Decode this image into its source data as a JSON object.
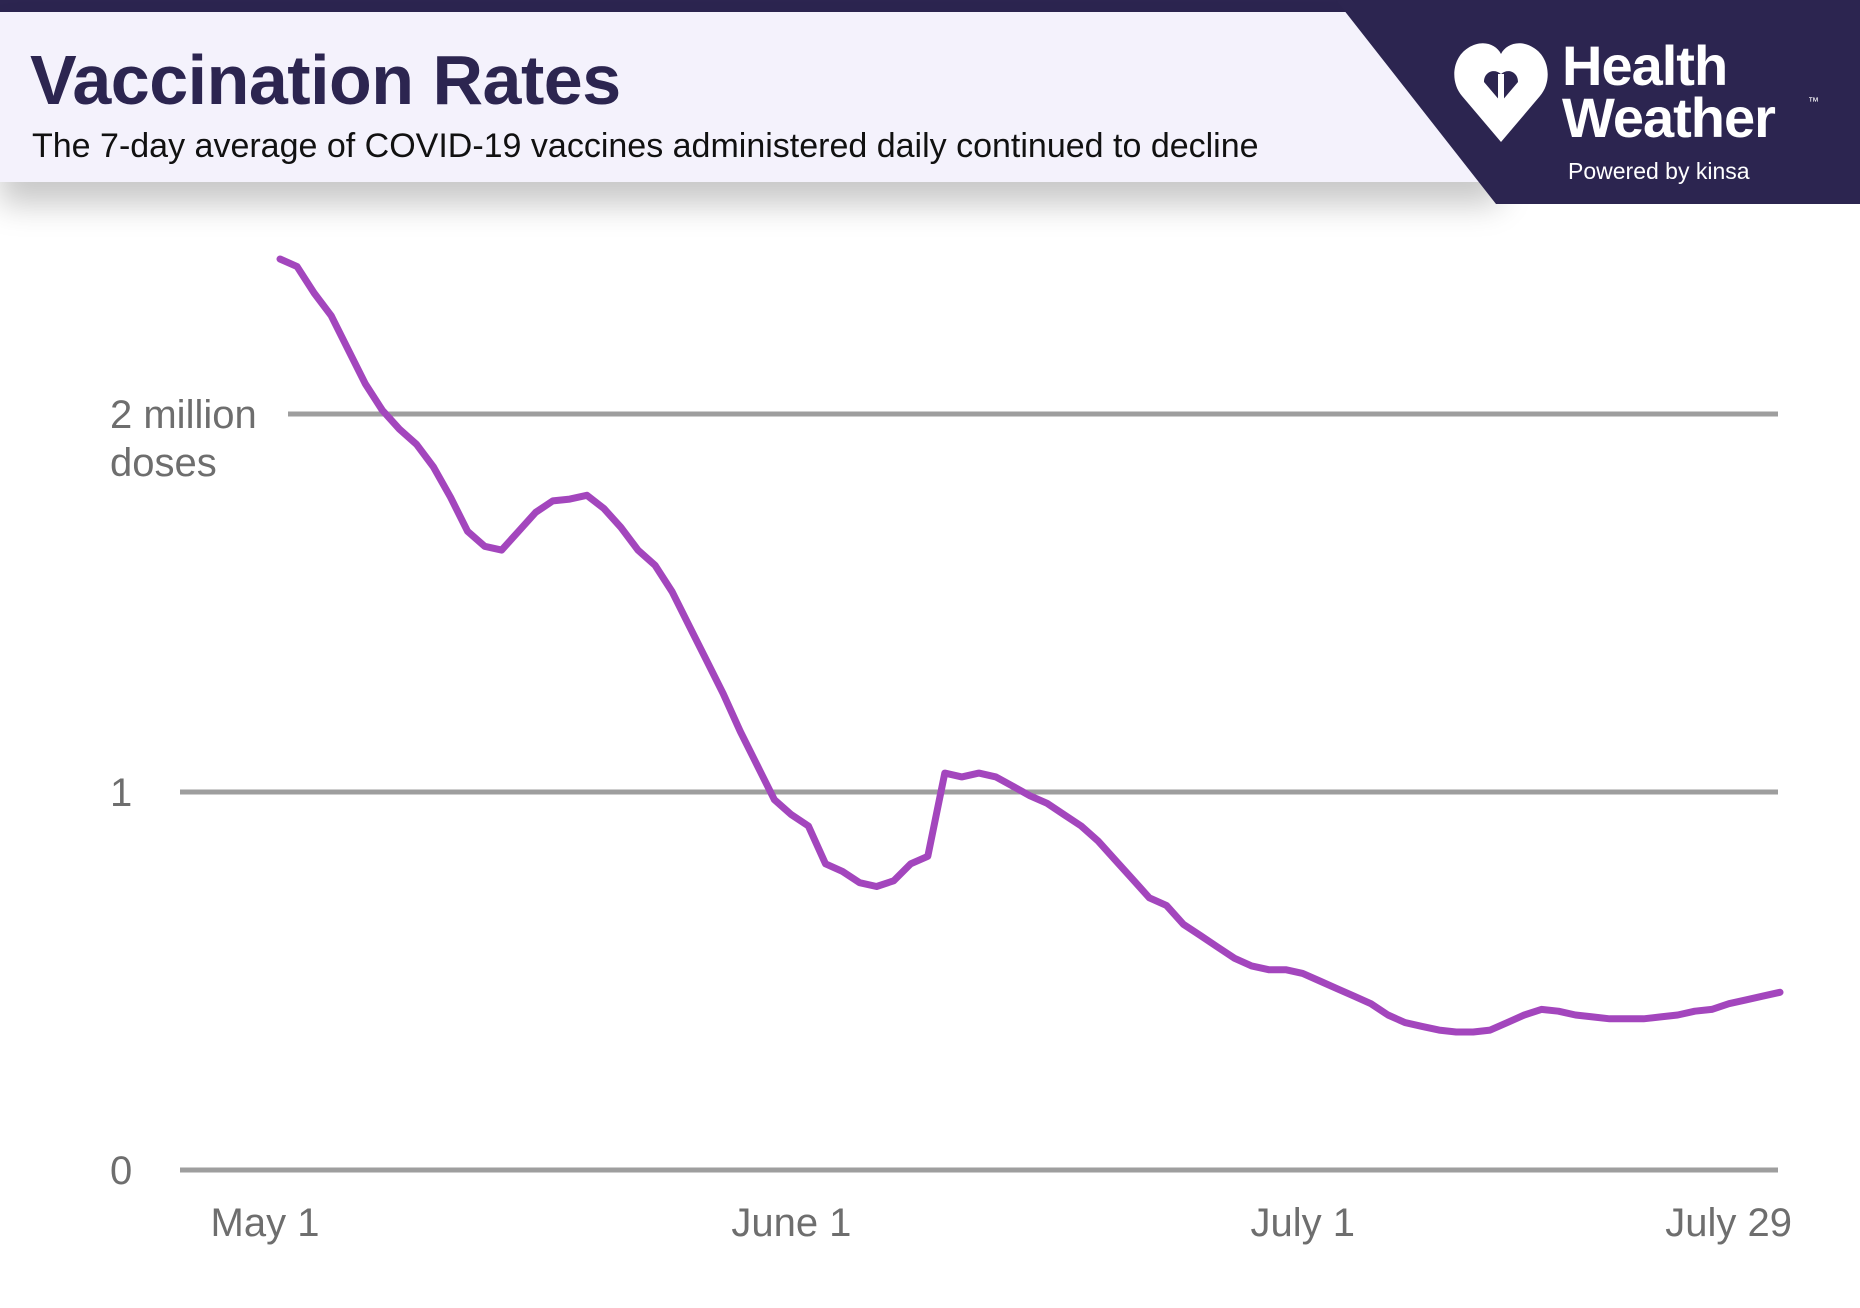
{
  "header": {
    "title": "Vaccination Rates",
    "subtitle": "The 7-day average of COVID-19 vaccines administered daily continued to decline"
  },
  "brand": {
    "name_line1": "Health",
    "name_line2": "Weather",
    "trademark": "™",
    "powered_by": "Powered by kinsa",
    "icon": "heart-icon"
  },
  "colors": {
    "brand_dark": "#2c2550",
    "line": "#a346bd",
    "grid": "#9e9e9e",
    "tick_text": "#6e6e6e"
  },
  "chart_data": {
    "type": "line",
    "title": "Vaccination Rates",
    "subtitle": "The 7-day average of COVID-19 vaccines administered daily continued to decline",
    "xlabel": "",
    "ylabel": "doses (millions)",
    "unit_label": "doses",
    "ylim": [
      0,
      2.5
    ],
    "xlim": [
      0,
      89
    ],
    "x_ticks": [
      {
        "day": 0,
        "label": "May 1"
      },
      {
        "day": 31,
        "label": "June 1"
      },
      {
        "day": 61,
        "label": "July 1"
      },
      {
        "day": 89,
        "label": "July 29"
      }
    ],
    "y_ticks": [
      {
        "value": 0,
        "label": "0"
      },
      {
        "value": 1,
        "label": "1"
      },
      {
        "value": 2,
        "label": "2 million"
      }
    ],
    "grid": true,
    "series": [
      {
        "name": "7-day average of COVID-19 vaccines administered daily",
        "x": [
          1,
          2,
          3,
          4,
          5,
          6,
          7,
          8,
          9,
          10,
          11,
          12,
          13,
          14,
          15,
          16,
          17,
          18,
          19,
          20,
          21,
          22,
          23,
          24,
          25,
          26,
          27,
          28,
          29,
          30,
          31,
          32,
          33,
          34,
          35,
          36,
          37,
          38,
          39,
          40,
          41,
          42,
          43,
          44,
          45,
          46,
          47,
          48,
          49,
          50,
          51,
          52,
          53,
          54,
          55,
          56,
          57,
          58,
          59,
          60,
          61,
          62,
          63,
          64,
          65,
          66,
          67,
          68,
          69,
          70,
          71,
          72,
          73,
          74,
          75,
          76,
          77,
          78,
          79,
          80,
          81,
          82,
          83,
          84,
          85,
          86,
          87,
          88,
          89
        ],
        "values": [
          2.41,
          2.39,
          2.32,
          2.26,
          2.17,
          2.08,
          2.01,
          1.96,
          1.92,
          1.86,
          1.78,
          1.69,
          1.65,
          1.64,
          1.69,
          1.74,
          1.77,
          1.775,
          1.785,
          1.75,
          1.7,
          1.64,
          1.6,
          1.53,
          1.44,
          1.35,
          1.26,
          1.16,
          1.07,
          0.98,
          0.94,
          0.91,
          0.81,
          0.79,
          0.76,
          0.75,
          0.765,
          0.81,
          0.83,
          1.05,
          1.04,
          1.05,
          1.04,
          1.015,
          0.99,
          0.97,
          0.94,
          0.91,
          0.87,
          0.82,
          0.77,
          0.72,
          0.7,
          0.65,
          0.62,
          0.59,
          0.56,
          0.54,
          0.53,
          0.53,
          0.52,
          0.5,
          0.48,
          0.46,
          0.44,
          0.41,
          0.39,
          0.38,
          0.37,
          0.365,
          0.365,
          0.37,
          0.39,
          0.41,
          0.425,
          0.42,
          0.41,
          0.405,
          0.4,
          0.4,
          0.4,
          0.405,
          0.41,
          0.42,
          0.425,
          0.44,
          0.45,
          0.46,
          0.47
        ]
      }
    ]
  }
}
